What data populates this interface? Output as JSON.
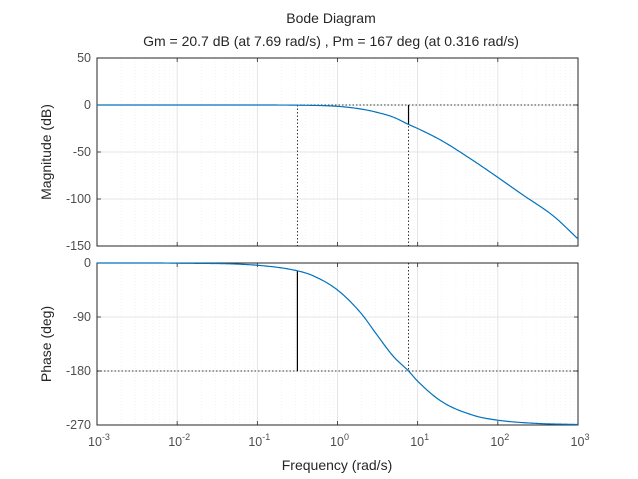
{
  "chart_data": {
    "type": "line",
    "title": "Bode Diagram",
    "subtitle": "Gm = 20.7 dB (at 7.69 rad/s) ,  Pm = 167 deg (at 0.316 rad/s)",
    "xlabel": "Frequency  (rad/s)",
    "x_scale": "log",
    "xlim": [
      0.001,
      1000
    ],
    "x_tick_labels": [
      {
        "base": "10",
        "exp": "-3",
        "value": 0.001
      },
      {
        "base": "10",
        "exp": "-2",
        "value": 0.01
      },
      {
        "base": "10",
        "exp": "-1",
        "value": 0.1
      },
      {
        "base": "10",
        "exp": "0",
        "value": 1
      },
      {
        "base": "10",
        "exp": "1",
        "value": 10
      },
      {
        "base": "10",
        "exp": "2",
        "value": 100
      },
      {
        "base": "10",
        "exp": "3",
        "value": 1000
      }
    ],
    "grid": true,
    "series_color": "#0072bd",
    "margin_marker_color": "#000000",
    "gain_margin": {
      "value_db": 20.7,
      "frequency": 7.69
    },
    "phase_margin": {
      "value_deg": 167,
      "frequency": 0.316
    },
    "magnitude": {
      "ylabel": "Magnitude (dB)",
      "ylim": [
        -150,
        50
      ],
      "yticks": [
        50,
        0,
        -50,
        -100,
        -150
      ],
      "ytick_labels": [
        "50",
        "0",
        "-50",
        "-100",
        "-150"
      ],
      "points": [
        {
          "x": 0.001,
          "y": 0.0
        },
        {
          "x": 0.01,
          "y": 0.0
        },
        {
          "x": 0.1,
          "y": -0.02
        },
        {
          "x": 0.316,
          "y": -0.2
        },
        {
          "x": 1,
          "y": -1.4
        },
        {
          "x": 2,
          "y": -4.4
        },
        {
          "x": 3,
          "y": -7.5
        },
        {
          "x": 5,
          "y": -13.0
        },
        {
          "x": 7.69,
          "y": -20.7
        },
        {
          "x": 10,
          "y": -25.0
        },
        {
          "x": 20,
          "y": -38.0
        },
        {
          "x": 50,
          "y": -59.5
        },
        {
          "x": 100,
          "y": -77.0
        },
        {
          "x": 200,
          "y": -95.0
        },
        {
          "x": 500,
          "y": -118.5
        },
        {
          "x": 1000,
          "y": -142.5
        }
      ]
    },
    "phase": {
      "ylabel": "Phase (deg)",
      "ylim": [
        -270,
        0
      ],
      "yticks": [
        0,
        -90,
        -180,
        -270
      ],
      "ytick_labels": [
        "0",
        "-90",
        "-180",
        "-270"
      ],
      "points": [
        {
          "x": 0.001,
          "y": 0.0
        },
        {
          "x": 0.01,
          "y": -0.3
        },
        {
          "x": 0.1,
          "y": -3.8
        },
        {
          "x": 0.316,
          "y": -13.0
        },
        {
          "x": 0.5,
          "y": -21.5
        },
        {
          "x": 1,
          "y": -45.0
        },
        {
          "x": 2,
          "y": -85.0
        },
        {
          "x": 3,
          "y": -117.0
        },
        {
          "x": 5,
          "y": -156.0
        },
        {
          "x": 7.69,
          "y": -180.0
        },
        {
          "x": 10,
          "y": -197.0
        },
        {
          "x": 20,
          "y": -231.0
        },
        {
          "x": 50,
          "y": -254.0
        },
        {
          "x": 100,
          "y": -262.0
        },
        {
          "x": 300,
          "y": -267.3
        },
        {
          "x": 1000,
          "y": -269.2
        }
      ]
    }
  }
}
